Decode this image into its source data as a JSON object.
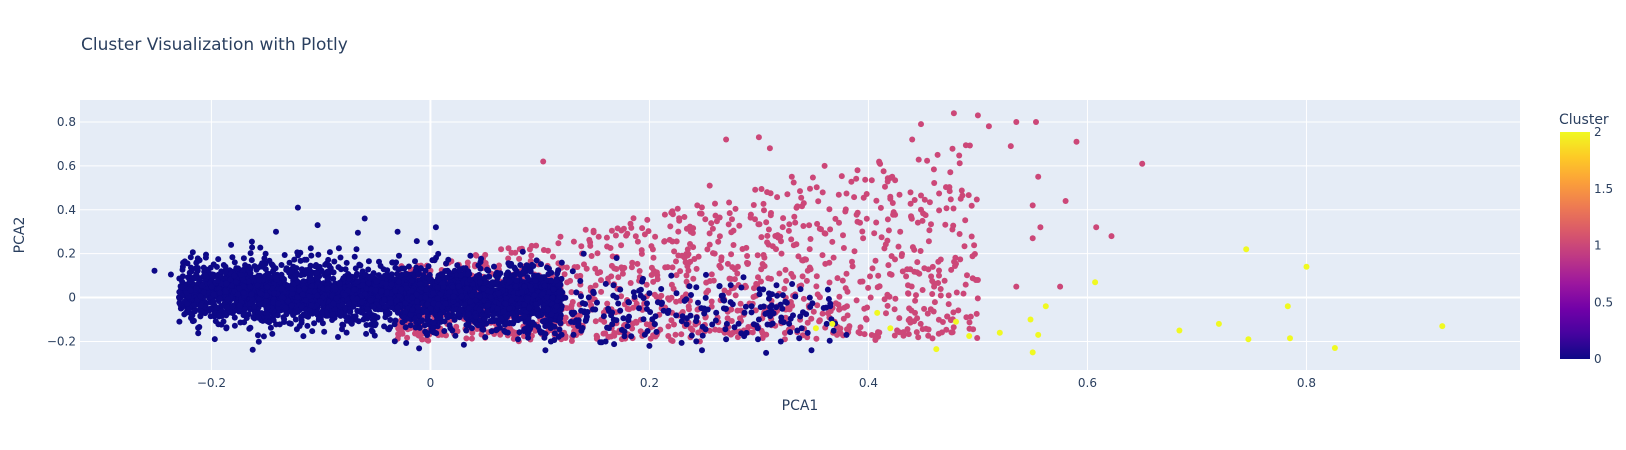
{
  "chart_data": {
    "type": "scatter",
    "title": "Cluster Visualization with Plotly",
    "xlabel": "PCA1",
    "ylabel": "PCA2",
    "xlim": [
      -0.32,
      0.995
    ],
    "ylim": [
      -0.33,
      0.9
    ],
    "x_ticks": [
      -0.2,
      0,
      0.2,
      0.4,
      0.6,
      0.8
    ],
    "x_tick_labels": [
      "−0.2",
      "0",
      "0.2",
      "0.4",
      "0.6",
      "0.8"
    ],
    "y_ticks": [
      -0.2,
      0,
      0.2,
      0.4,
      0.6,
      0.8
    ],
    "y_tick_labels": [
      "−0.2",
      "0",
      "0.2",
      "0.4",
      "0.6",
      "0.8"
    ],
    "grid": true,
    "colorscale": "plasma",
    "colorbar": {
      "title": "Cluster",
      "range": [
        0,
        2
      ],
      "ticks": [
        0,
        0.5,
        1,
        1.5,
        2
      ],
      "tick_labels": [
        "0",
        "0.5",
        "1",
        "1.5",
        "2"
      ],
      "stops": [
        "#0d0887",
        "#46039f",
        "#7201a8",
        "#9c179e",
        "#bd3786",
        "#d8576b",
        "#ed7953",
        "#fb9f3a",
        "#fdca26",
        "#f0f921"
      ]
    },
    "colors": {
      "cluster_0": "#0d0887",
      "cluster_1": "#cc4778",
      "cluster_2": "#f0f921",
      "plot_bg": "#e5ecf6",
      "grid": "#ffffff"
    },
    "series": [
      {
        "cluster": 0,
        "points": [
          [
            -0.252,
            0.122
          ],
          [
            -0.237,
            0.105
          ],
          [
            -0.226,
            0.14
          ],
          [
            -0.22,
            0.072
          ],
          [
            -0.205,
            0.182
          ],
          [
            -0.198,
            0.015
          ],
          [
            -0.182,
            0.24
          ],
          [
            -0.163,
            0.255
          ],
          [
            -0.141,
            0.3
          ],
          [
            -0.121,
            0.41
          ],
          [
            -0.103,
            0.33
          ],
          [
            -0.06,
            0.36
          ],
          [
            -0.03,
            0.3
          ],
          [
            0.0,
            0.25
          ],
          [
            0.005,
            0.32
          ],
          [
            -0.21,
            0.005
          ],
          [
            -0.174,
            -0.036
          ],
          [
            -0.15,
            -0.07
          ],
          [
            -0.1,
            -0.1
          ],
          [
            -0.05,
            -0.12
          ],
          [
            0.02,
            -0.15
          ],
          [
            0.05,
            -0.18
          ],
          [
            0.08,
            -0.19
          ],
          [
            0.105,
            -0.24
          ],
          [
            0.11,
            -0.2
          ],
          [
            0.16,
            -0.2
          ],
          [
            0.2,
            -0.22
          ],
          [
            0.248,
            -0.24
          ],
          [
            0.27,
            -0.19
          ],
          [
            0.32,
            -0.2
          ],
          [
            0.348,
            -0.24
          ],
          [
            0.38,
            -0.17
          ],
          [
            0.17,
            0.18
          ],
          [
            0.14,
            0.2
          ],
          [
            0.22,
            0.1
          ],
          [
            0.2,
            0.02
          ],
          [
            0.25,
            -0.05
          ],
          [
            0.3,
            -0.1
          ],
          [
            0.335,
            -0.15
          ],
          [
            0.13,
            0.12
          ]
        ],
        "cloud": {
          "count": 3400,
          "x_range": [
            -0.23,
            0.12
          ],
          "center_y": 0.01,
          "slope": -0.42,
          "spread": 0.095
        },
        "tail": {
          "count": 220,
          "x_range": [
            0.1,
            0.37
          ],
          "center_y": -0.06,
          "spread": 0.12
        }
      },
      {
        "cluster": 1,
        "points": [
          [
            0.103,
            0.62
          ],
          [
            0.27,
            0.72
          ],
          [
            0.3,
            0.73
          ],
          [
            0.31,
            0.68
          ],
          [
            0.44,
            0.72
          ],
          [
            0.448,
            0.79
          ],
          [
            0.478,
            0.84
          ],
          [
            0.5,
            0.83
          ],
          [
            0.51,
            0.78
          ],
          [
            0.535,
            0.8
          ],
          [
            0.553,
            0.8
          ],
          [
            0.59,
            0.71
          ],
          [
            0.65,
            0.61
          ],
          [
            0.555,
            0.55
          ],
          [
            0.53,
            0.69
          ],
          [
            0.58,
            0.44
          ],
          [
            0.608,
            0.32
          ],
          [
            0.622,
            0.28
          ],
          [
            0.55,
            0.42
          ],
          [
            0.575,
            0.05
          ],
          [
            0.557,
            0.32
          ],
          [
            0.55,
            0.27
          ],
          [
            0.535,
            0.05
          ],
          [
            0.5,
            0.08
          ],
          [
            0.46,
            0.05
          ],
          [
            0.42,
            0.45
          ],
          [
            0.39,
            0.58
          ],
          [
            0.36,
            0.6
          ],
          [
            0.33,
            0.55
          ],
          [
            0.255,
            0.51
          ]
        ],
        "cloud": {
          "count": 1350,
          "x_range": [
            -0.03,
            0.5
          ],
          "y_min": -0.2,
          "y_max": 0.72
        }
      },
      {
        "cluster": 2,
        "points": [
          [
            0.352,
            -0.14
          ],
          [
            0.367,
            -0.12
          ],
          [
            0.408,
            -0.07
          ],
          [
            0.42,
            -0.14
          ],
          [
            0.462,
            -0.235
          ],
          [
            0.48,
            -0.11
          ],
          [
            0.492,
            -0.175
          ],
          [
            0.52,
            -0.16
          ],
          [
            0.55,
            -0.25
          ],
          [
            0.555,
            -0.17
          ],
          [
            0.562,
            -0.04
          ],
          [
            0.607,
            0.07
          ],
          [
            0.684,
            -0.15
          ],
          [
            0.72,
            -0.12
          ],
          [
            0.745,
            0.22
          ],
          [
            0.747,
            -0.19
          ],
          [
            0.783,
            -0.04
          ],
          [
            0.785,
            -0.185
          ],
          [
            0.8,
            0.14
          ],
          [
            0.826,
            -0.23
          ],
          [
            0.924,
            -0.13
          ],
          [
            0.548,
            -0.1
          ]
        ]
      }
    ]
  }
}
